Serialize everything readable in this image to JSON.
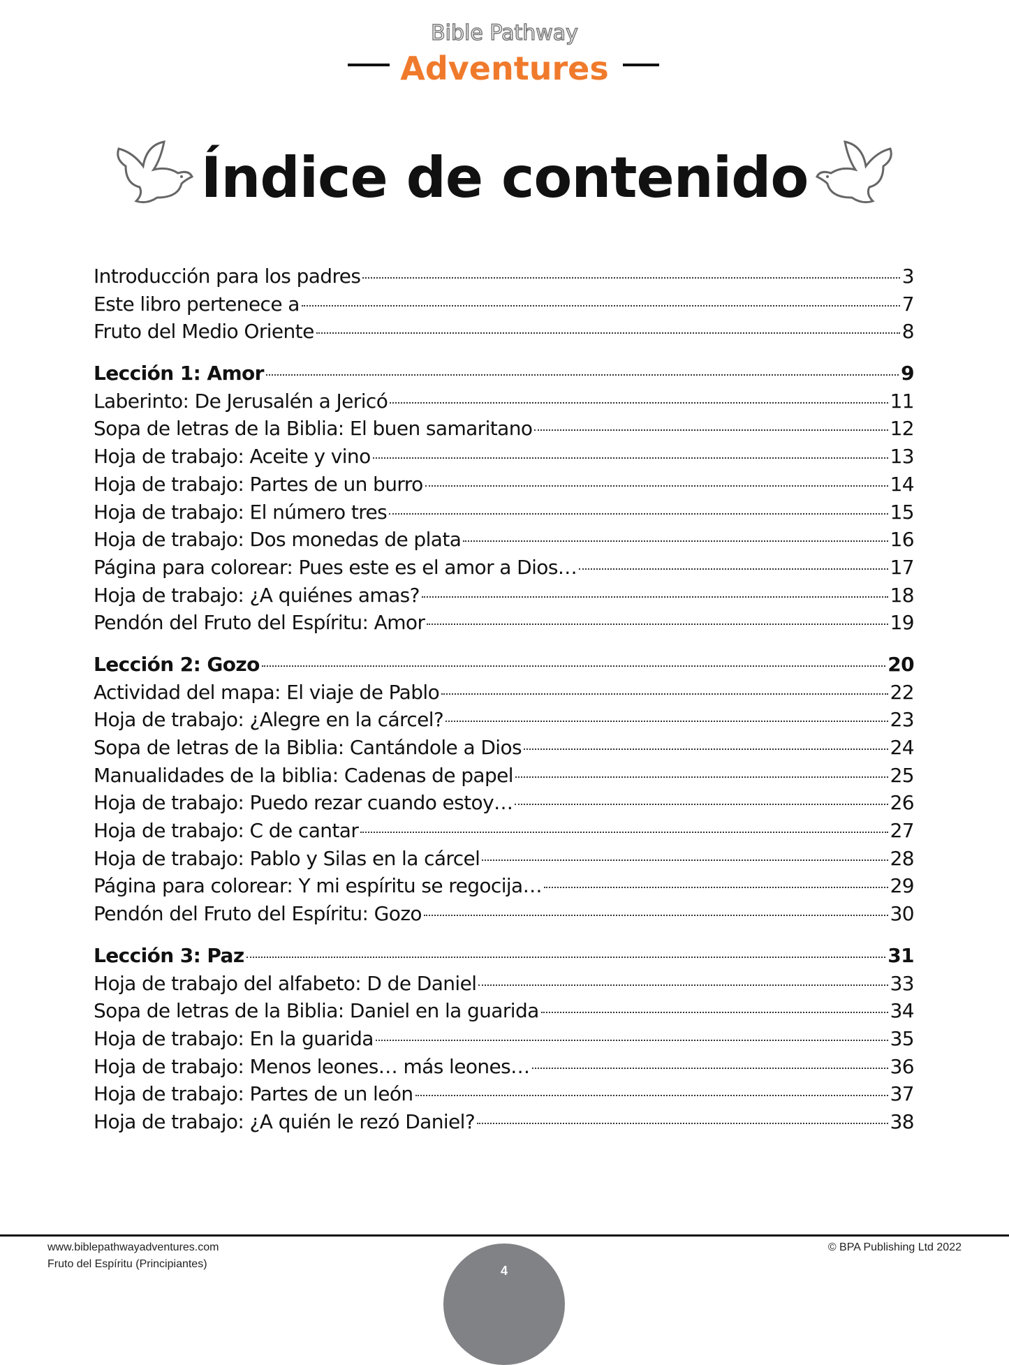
{
  "header": {
    "logo_line1": "Bible Pathway",
    "logo_line2": "Adventures",
    "brand_color": "#f07a2c"
  },
  "title": "Índice de contenido",
  "toc": [
    [
      {
        "label": "Introducción para los padres",
        "page": "3"
      },
      {
        "label": "Este libro pertenece a",
        "page": "7"
      },
      {
        "label": "Fruto del Medio Oriente",
        "page": "8"
      }
    ],
    [
      {
        "label": "Lección 1: Amor",
        "page": "9",
        "bold": true
      },
      {
        "label": "Laberinto: De Jerusalén a Jericó",
        "page": "11"
      },
      {
        "label": "Sopa de letras de la Biblia: El buen samaritano",
        "page": "12"
      },
      {
        "label": "Hoja de trabajo: Aceite y vino",
        "page": "13"
      },
      {
        "label": "Hoja de trabajo: Partes de un burro",
        "page": "14"
      },
      {
        "label": "Hoja de trabajo: El número tres",
        "page": "15"
      },
      {
        "label": "Hoja de trabajo: Dos monedas de plata",
        "page": "16"
      },
      {
        "label": "Página para colorear: Pues este es el amor a Dios…",
        "page": "17"
      },
      {
        "label": "Hoja de trabajo: ¿A quiénes amas?",
        "page": "18"
      },
      {
        "label": "Pendón del Fruto del Espíritu: Amor",
        "page": "19"
      }
    ],
    [
      {
        "label": "Lección 2: Gozo",
        "page": "20",
        "bold": true
      },
      {
        "label": "Actividad del mapa: El viaje de Pablo",
        "page": "22"
      },
      {
        "label": "Hoja de trabajo: ¿Alegre en la cárcel?",
        "page": "23"
      },
      {
        "label": "Sopa de letras de la Biblia: Cantándole a Dios",
        "page": "24"
      },
      {
        "label": "Manualidades de la biblia: Cadenas de papel",
        "page": "25"
      },
      {
        "label": "Hoja de trabajo: Puedo rezar cuando estoy…",
        "page": "26"
      },
      {
        "label": "Hoja de trabajo: C de cantar",
        "page": "27"
      },
      {
        "label": "Hoja de trabajo: Pablo y Silas en la cárcel",
        "page": "28"
      },
      {
        "label": "Página para colorear: Y mi espíritu se regocija…",
        "page": "29"
      },
      {
        "label": "Pendón del Fruto del Espíritu: Gozo",
        "page": "30"
      }
    ],
    [
      {
        "label": "Lección 3: Paz",
        "page": "31",
        "bold": true
      },
      {
        "label": "Hoja de trabajo del alfabeto: D de Daniel",
        "page": "33"
      },
      {
        "label": "Sopa de letras de la Biblia: Daniel en la guarida",
        "page": "34"
      },
      {
        "label": "Hoja de trabajo: En la guarida",
        "page": "35"
      },
      {
        "label": "Hoja de trabajo: Menos leones… más leones…",
        "page": "36"
      },
      {
        "label": "Hoja de trabajo: Partes de un león",
        "page": "37"
      },
      {
        "label": "Hoja de trabajo: ¿A quién le rezó Daniel?",
        "page": "38"
      }
    ]
  ],
  "footer": {
    "website": "www.biblepathwayadventures.com",
    "book": "Fruto del Espíritu (Principiantes)",
    "copyright": "© BPA Publishing Ltd 2022",
    "page_number": "4"
  }
}
